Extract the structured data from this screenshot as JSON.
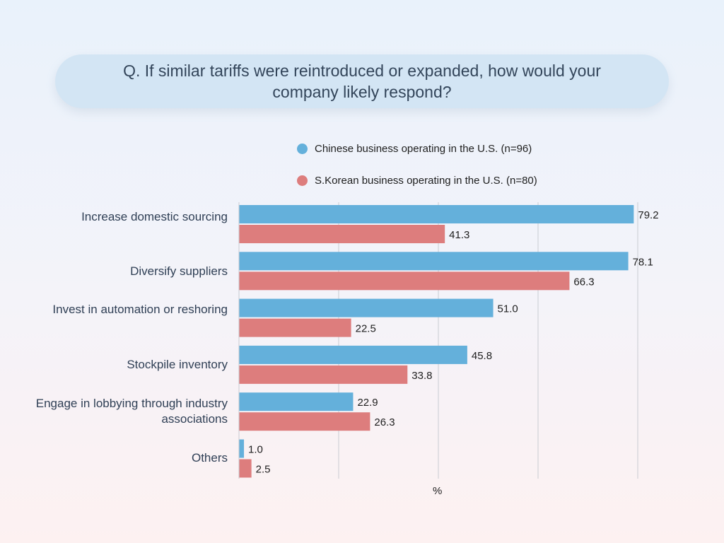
{
  "question": {
    "text": "Q.  If similar tariffs were reintroduced or expanded, how would your company likely respond?"
  },
  "chart_data": {
    "type": "bar",
    "orientation": "horizontal",
    "categories": [
      "Increase domestic sourcing",
      "Diversify suppliers",
      "Invest in automation or reshoring",
      "Stockpile inventory",
      "Engage in lobbying through industry associations",
      "Others"
    ],
    "series": [
      {
        "name": "Chinese business operating in the U.S. (n=96)",
        "color": "#64b0db",
        "values": [
          79.2,
          78.1,
          51.0,
          45.8,
          22.9,
          1.0
        ]
      },
      {
        "name": "S.Korean business operating in the U.S. (n=80)",
        "color": "#dd7d7d",
        "values": [
          41.3,
          66.3,
          22.5,
          33.8,
          26.3,
          2.5
        ]
      }
    ],
    "xlabel": "%",
    "xlim": [
      0,
      80
    ],
    "grid": true,
    "legend_position": "top-right",
    "data_labels": true
  }
}
